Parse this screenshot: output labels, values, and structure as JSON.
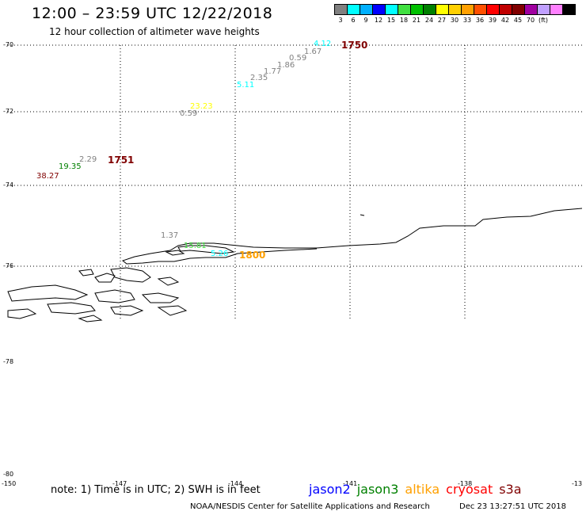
{
  "title": "12:00 – 23:59 UTC 12/22/2018",
  "subtitle": "12 hour collection of altimeter wave heights",
  "legend": {
    "colors": [
      "#808080",
      "#00ffff",
      "#00b0ff",
      "#0000ff",
      "#00ffff",
      "#40e040",
      "#00c000",
      "#008000",
      "#ffff00",
      "#ffd000",
      "#ffa000",
      "#ff5000",
      "#ff0000",
      "#c00000",
      "#800000",
      "#a000a0",
      "#c0a0ff",
      "#ff80ff",
      "#000000"
    ],
    "labels": [
      "3",
      "6",
      "9",
      "12",
      "15",
      "18",
      "21",
      "24",
      "27",
      "30",
      "33",
      "36",
      "39",
      "42",
      "45",
      "70",
      "(ft)"
    ]
  },
  "lat_labels": [
    "-70",
    "-72",
    "-74",
    "-76",
    "-78",
    "-80"
  ],
  "lon_labels": [
    "-150",
    "-147",
    "-144",
    "-141",
    "-138",
    "-13"
  ],
  "values": [
    {
      "t": "4.12",
      "c": "#00ffff"
    },
    {
      "t": "1.67",
      "c": "#808080"
    },
    {
      "t": "0.59",
      "c": "#808080"
    },
    {
      "t": "1.86",
      "c": "#808080"
    },
    {
      "t": "1.77",
      "c": "#808080"
    },
    {
      "t": "2.35",
      "c": "#808080"
    },
    {
      "t": "5.11",
      "c": "#00ffff"
    },
    {
      "t": "23.23",
      "c": "#ffff00"
    },
    {
      "t": "0.59",
      "c": "#808080"
    },
    {
      "t": "2.29",
      "c": "#808080"
    },
    {
      "t": "19.35",
      "c": "#008000"
    },
    {
      "t": "38.27",
      "c": "#800000"
    },
    {
      "t": "1.37",
      "c": "#808080"
    },
    {
      "t": "15.81",
      "c": "#40e040"
    },
    {
      "t": "5.26",
      "c": "#00ffff"
    }
  ],
  "times": [
    {
      "t": "1750",
      "c": "#800000"
    },
    {
      "t": "1751",
      "c": "#800000"
    },
    {
      "t": "1800",
      "c": "#ffa000"
    }
  ],
  "note": "note: 1) Time is in UTC; 2) SWH is in feet",
  "missions": [
    {
      "t": "jason2",
      "c": "#0000ff"
    },
    {
      "t": "jason3",
      "c": "#008000"
    },
    {
      "t": "altika",
      "c": "#ffa000"
    },
    {
      "t": "cryosat",
      "c": "#ff0000"
    },
    {
      "t": "s3a",
      "c": "#800000"
    }
  ],
  "credit": "NOAA/NESDIS Center for Satellite Applications and Research",
  "stamp": "Dec 23 13:27:51 UTC 2018"
}
